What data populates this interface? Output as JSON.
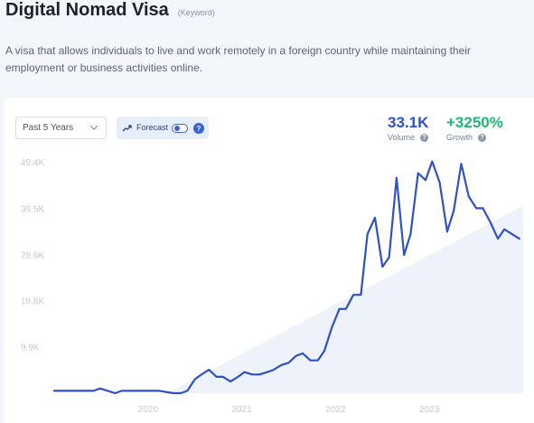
{
  "header": {
    "title": "Digital Nomad Visa",
    "tag": "(Keyword)",
    "description": "A visa that allows individuals to live and work remotely in a foreign country while maintaining their employment or business activities online."
  },
  "controls": {
    "timeframe": "Past 5 Years",
    "forecast_label": "Forecast",
    "forecast_on": false,
    "help": "?"
  },
  "metrics": {
    "volume_value": "33.1K",
    "volume_label": "Volume",
    "growth_value": "+3250%",
    "growth_label": "Growth"
  },
  "colors": {
    "line": "#2f51c8",
    "area": "#edf2fb",
    "volume": "#2f51c8",
    "growth": "#1fb574"
  },
  "chart_data": {
    "type": "line",
    "y_ticks": [
      {
        "value": 9900,
        "label": "9.9K"
      },
      {
        "value": 19800,
        "label": "19.8K"
      },
      {
        "value": 29600,
        "label": "29.6K"
      },
      {
        "value": 39500,
        "label": "39.5K"
      },
      {
        "value": 49400,
        "label": "49.4K"
      }
    ],
    "x_ticks": [
      {
        "value": 2020.0,
        "label": "2020"
      },
      {
        "value": 2021.0,
        "label": "2021"
      },
      {
        "value": 2022.0,
        "label": "2022"
      },
      {
        "value": 2023.0,
        "label": "2023"
      }
    ],
    "xlim": [
      2019.0,
      2024.0
    ],
    "ylim": [
      0,
      50000
    ],
    "trend_band": {
      "start": [
        2020.2,
        0
      ],
      "end": [
        2024.0,
        40000
      ]
    },
    "series": [
      {
        "x": [
          2019.0,
          2019.42,
          2019.49,
          2019.57,
          2019.65,
          2019.72,
          2019.8,
          2019.88,
          2020.12,
          2020.27,
          2020.35,
          2020.42,
          2020.5,
          2020.57,
          2020.65,
          2020.73,
          2020.8,
          2020.88,
          2020.96,
          2021.03,
          2021.11,
          2021.19,
          2021.27,
          2021.34,
          2021.42,
          2021.5,
          2021.58,
          2021.65,
          2021.73,
          2021.81,
          2021.88,
          2021.96,
          2022.04,
          2022.11,
          2022.19,
          2022.27,
          2022.34,
          2022.42,
          2022.5,
          2022.57,
          2022.65,
          2022.73,
          2022.8,
          2022.88,
          2022.96,
          2023.03,
          2023.11,
          2023.19,
          2023.26,
          2023.34,
          2023.42,
          2023.5,
          2023.57,
          2023.65,
          2023.73,
          2023.8,
          2023.88,
          2023.96
        ],
        "y": [
          500,
          500,
          1000,
          500,
          0,
          500,
          500,
          500,
          500,
          0,
          0,
          500,
          3000,
          4000,
          5000,
          3500,
          3500,
          2500,
          3500,
          4500,
          4000,
          4000,
          4500,
          5000,
          6000,
          6500,
          8000,
          8500,
          7000,
          7000,
          9000,
          14000,
          18000,
          18000,
          21000,
          21000,
          34000,
          37500,
          27000,
          29000,
          46000,
          29500,
          34000,
          47000,
          45500,
          49500,
          45000,
          34500,
          39000,
          49000,
          42000,
          39500,
          39500,
          36500,
          33000,
          35000,
          34000,
          33000
        ]
      }
    ]
  }
}
